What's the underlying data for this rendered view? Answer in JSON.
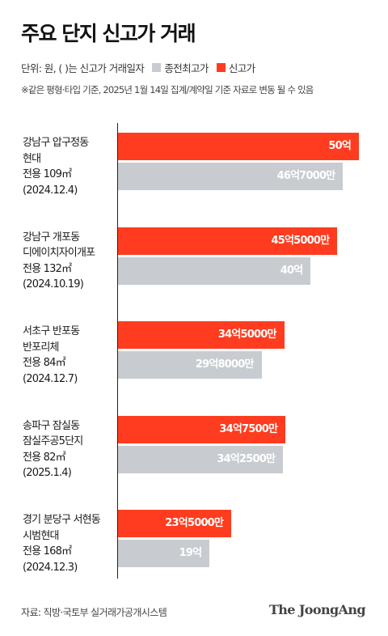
{
  "title": "주요 단지 신고가 거래",
  "legend": {
    "prefix": "단위: 원, ( )는 신고가 거래일자",
    "prev_label": "종전최고가",
    "new_label": "신고가",
    "prev_color": "#c8ccd1",
    "new_color": "#ff3c1f"
  },
  "note": "※같은 평형·타입 기준, 2025년 1월 14일 집계/계약일 기준 자료로 변동 될 수 있음",
  "source": "자료: 직방·국토부 실거래가공개시스템",
  "brand": "The JoongAng",
  "chart_data": {
    "type": "bar",
    "orientation": "horizontal",
    "unit": "억원",
    "xlim": [
      0,
      52
    ],
    "categories": [
      {
        "lines": [
          "강남구 압구정동",
          "현대",
          "전용 109㎡",
          "(2024.12.4)"
        ]
      },
      {
        "lines": [
          "강남구 개포동",
          "디에이치자이개포",
          "전용 132㎡",
          "(2024.10.19)"
        ]
      },
      {
        "lines": [
          "서초구 반포동",
          "반포리체",
          "전용 84㎡",
          "(2024.12.7)"
        ]
      },
      {
        "lines": [
          "송파구 잠실동",
          "잠실주공5단지",
          "전용 82㎡",
          "(2025.1.4)"
        ]
      },
      {
        "lines": [
          "경기 분당구 서현동",
          "시범현대",
          "전용 168㎡",
          "(2024.12.3)"
        ]
      }
    ],
    "series": [
      {
        "name": "신고가",
        "values": [
          50,
          45.5,
          34.5,
          34.75,
          23.5
        ],
        "labels": [
          "50억",
          "45억5000만",
          "34억5000만",
          "34억7500만",
          "23억5000만"
        ]
      },
      {
        "name": "종전최고가",
        "values": [
          46.7,
          40,
          29.8,
          34.25,
          19
        ],
        "labels": [
          "46억7000만",
          "40억",
          "29억8000만",
          "34억2500만",
          "19억"
        ]
      }
    ]
  }
}
